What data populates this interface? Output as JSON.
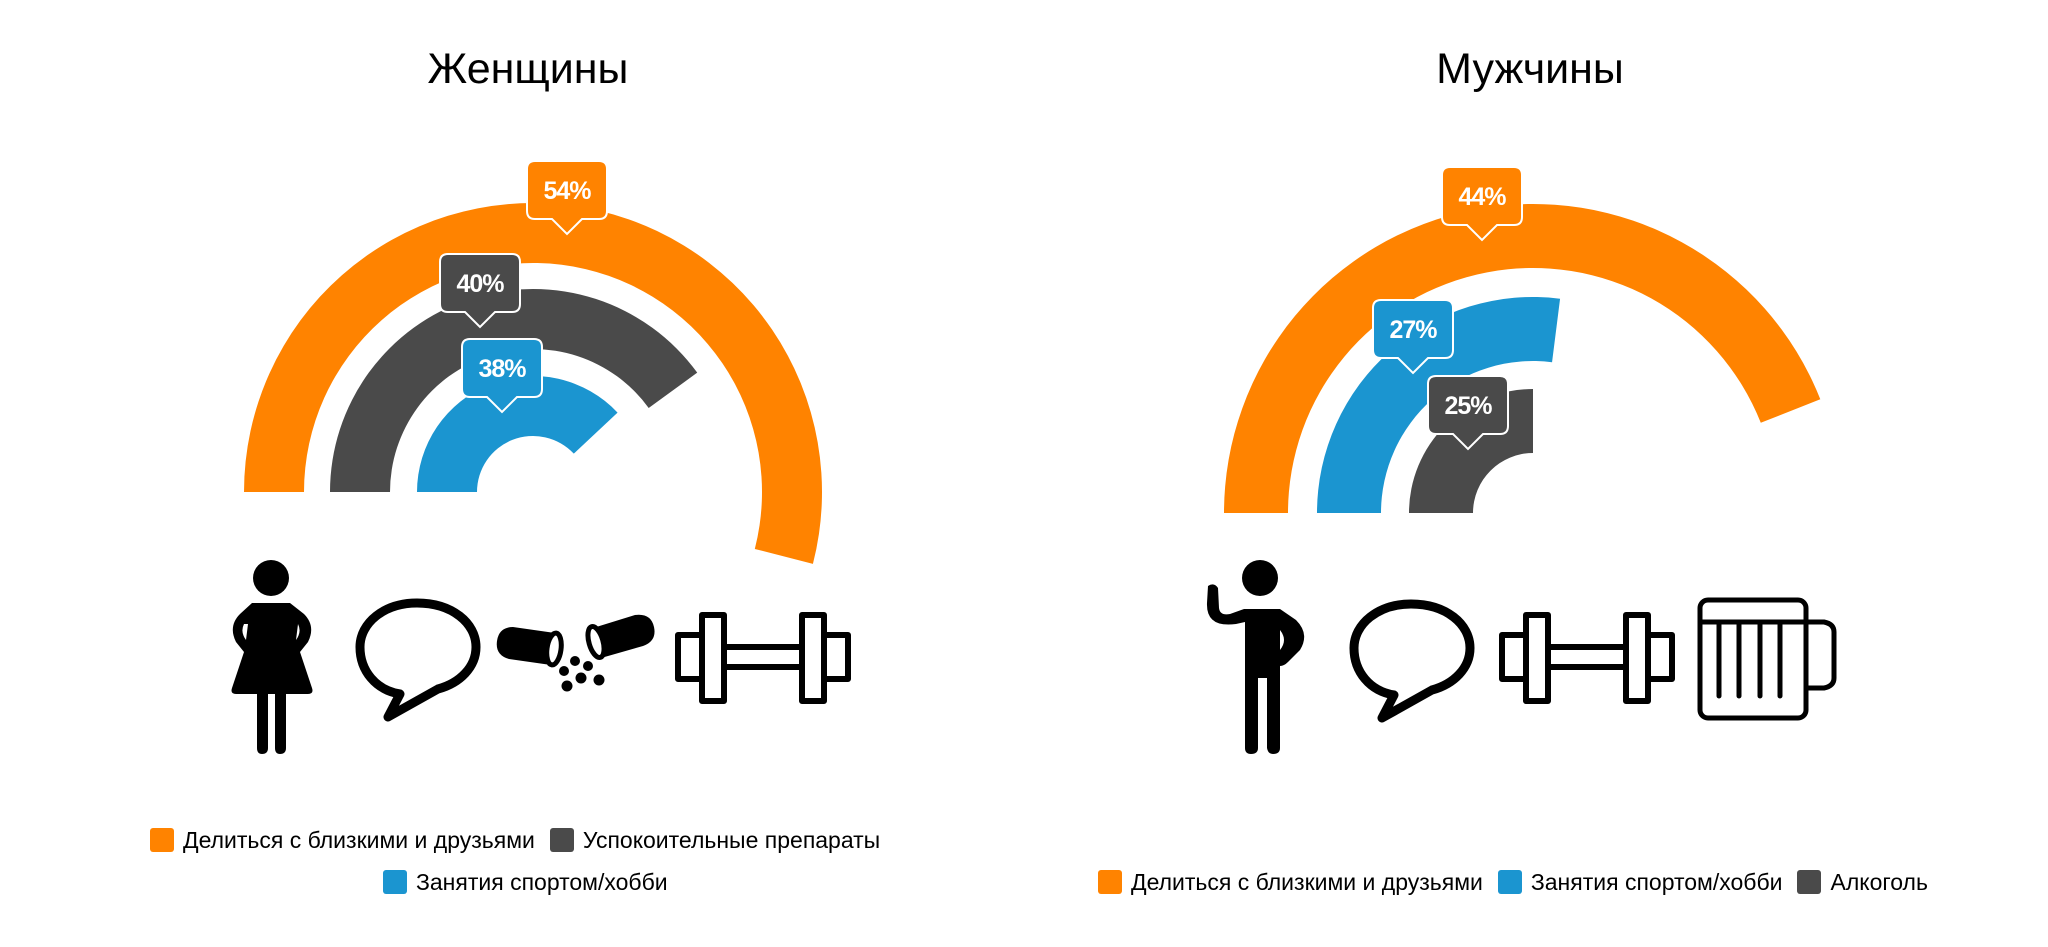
{
  "colors": {
    "orange": "#FF8300",
    "dark": "#4A4A4A",
    "blue": "#1B95D0",
    "icon": "#000000"
  },
  "panels": [
    {
      "id": "women",
      "title": "Женщины",
      "figure_icon": "woman-icon",
      "icons": [
        "woman-icon",
        "speech-bubble-icon",
        "pills-icon",
        "dumbbell-icon"
      ],
      "legend_rows": [
        [
          {
            "label": "Делиться с близкими и друзьями",
            "color": "#FF8300"
          },
          {
            "label": "Успокоительные препараты",
            "color": "#4A4A4A"
          }
        ],
        [
          {
            "label": "Занятия спортом/хобби",
            "color": "#1B95D0"
          }
        ]
      ]
    },
    {
      "id": "men",
      "title": "Мужчины",
      "figure_icon": "man-waving-icon",
      "icons": [
        "man-waving-icon",
        "speech-bubble-icon",
        "dumbbell-icon",
        "beer-mug-icon"
      ],
      "legend_rows": [
        [
          {
            "label": "Делиться с близкими и друзьями",
            "color": "#FF8300"
          },
          {
            "label": "Занятия спортом/хобби",
            "color": "#1B95D0"
          },
          {
            "label": "Алкоголь",
            "color": "#4A4A4A"
          }
        ]
      ]
    }
  ],
  "chart_data": [
    {
      "type": "radial-bar",
      "title": "Женщины",
      "value_unit": "% of full circle",
      "series": [
        {
          "name": "Делиться с близкими и друзьями",
          "value": 54,
          "label": "54%",
          "color": "#FF8300"
        },
        {
          "name": "Успокоительные препараты",
          "value": 40,
          "label": "40%",
          "color": "#4A4A4A"
        },
        {
          "name": "Занятия спортом/хобби",
          "value": 38,
          "label": "38%",
          "color": "#1B95D0"
        }
      ],
      "legend_position": "bottom",
      "grid": false
    },
    {
      "type": "radial-bar",
      "title": "Мужчины",
      "value_unit": "% of full circle",
      "series": [
        {
          "name": "Делиться с близкими и друзьями",
          "value": 44,
          "label": "44%",
          "color": "#FF8300"
        },
        {
          "name": "Занятия спортом/хобби",
          "value": 27,
          "label": "27%",
          "color": "#1B95D0"
        },
        {
          "name": "Алкоголь",
          "value": 25,
          "label": "25%",
          "color": "#4A4A4A"
        }
      ],
      "legend_position": "bottom",
      "grid": false
    }
  ]
}
